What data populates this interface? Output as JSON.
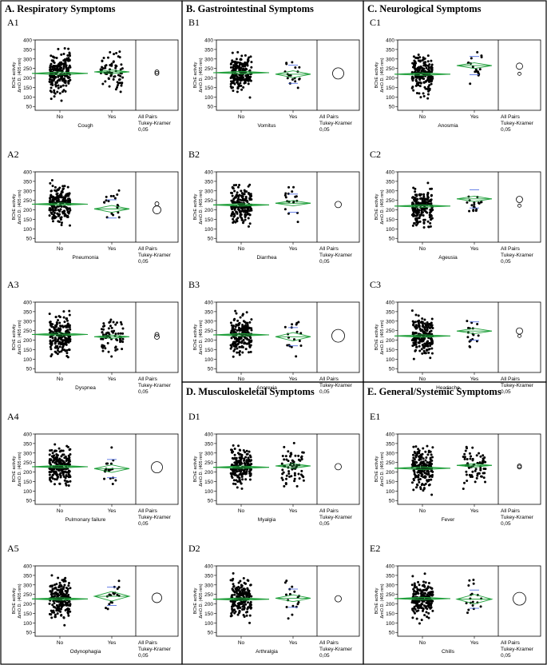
{
  "sections": [
    {
      "key": "A",
      "title": "A. Respiratory Symptoms"
    },
    {
      "key": "B",
      "title": "B. Gastrointestinal Symptoms"
    },
    {
      "key": "C",
      "title": "C. Neurological Symptoms"
    },
    {
      "key": "D",
      "title": "D. Musculoskeletal Symptoms"
    },
    {
      "key": "E",
      "title": "E. General/Systemic Symptoms"
    }
  ],
  "axis": {
    "ylabel_line1": "BChE activity",
    "ylabel_line2": "ΔmO.D. (405 nm)",
    "yticks": [
      50,
      100,
      150,
      200,
      250,
      300,
      350,
      400
    ],
    "ylim": [
      30,
      400
    ],
    "categories": [
      "No",
      "Yes"
    ]
  },
  "test_label": {
    "line1": "All Pairs",
    "line2": "Tukey-Kramer",
    "line3": "0,05"
  },
  "colors": {
    "diamond": "#1f9f3a",
    "points": "#000000",
    "blue_marks": "#4060e0",
    "frame": "#000000"
  },
  "chart_data": [
    {
      "id": "A1",
      "symptom": "Cough",
      "type": "scatter",
      "categories": [
        "No",
        "Yes"
      ],
      "means": [
        224,
        232
      ],
      "ci_half": [
        8,
        10
      ],
      "circles": [
        {
          "mean": 224,
          "r": 2.5
        },
        {
          "mean": 232,
          "r": 2.5
        }
      ]
    },
    {
      "id": "A2",
      "symptom": "Pneumonia",
      "type": "scatter",
      "categories": [
        "No",
        "Yes"
      ],
      "means": [
        230,
        205
      ],
      "ci_half": [
        7,
        18
      ],
      "circles": [
        {
          "mean": 232,
          "r": 2.5
        },
        {
          "mean": 200,
          "r": 5
        }
      ]
    },
    {
      "id": "A3",
      "symptom": "Dyspnea",
      "type": "scatter",
      "categories": [
        "No",
        "Yes"
      ],
      "means": [
        230,
        218
      ],
      "ci_half": [
        8,
        9
      ],
      "circles": [
        {
          "mean": 230,
          "r": 2.5
        },
        {
          "mean": 217,
          "r": 3
        }
      ]
    },
    {
      "id": "A4",
      "symptom": "Pulmonary failure",
      "type": "scatter",
      "categories": [
        "No",
        "Yes"
      ],
      "means": [
        228,
        218
      ],
      "ci_half": [
        7,
        20
      ],
      "circles": [
        {
          "mean": 225,
          "r": 7
        }
      ]
    },
    {
      "id": "A5",
      "symptom": "Odynophagia",
      "type": "scatter",
      "categories": [
        "No",
        "Yes"
      ],
      "means": [
        226,
        240
      ],
      "ci_half": [
        7,
        25
      ],
      "circles": [
        {
          "mean": 232,
          "r": 6
        }
      ]
    },
    {
      "id": "B1",
      "symptom": "Vomitus",
      "type": "scatter",
      "categories": [
        "No",
        "Yes"
      ],
      "means": [
        228,
        220
      ],
      "ci_half": [
        7,
        18
      ],
      "circles": [
        {
          "mean": 224,
          "r": 7
        }
      ]
    },
    {
      "id": "B2",
      "symptom": "Diarrhea",
      "type": "scatter",
      "categories": [
        "No",
        "Yes"
      ],
      "means": [
        226,
        235
      ],
      "ci_half": [
        7,
        14
      ],
      "circles": [
        {
          "mean": 228,
          "r": 4
        }
      ]
    },
    {
      "id": "B3",
      "symptom": "Anorexia",
      "type": "scatter",
      "categories": [
        "No",
        "Yes"
      ],
      "means": [
        228,
        218
      ],
      "ci_half": [
        7,
        22
      ],
      "circles": [
        {
          "mean": 223,
          "r": 8
        }
      ]
    },
    {
      "id": "C1",
      "symptom": "Anosmia",
      "type": "scatter",
      "categories": [
        "No",
        "Yes"
      ],
      "means": [
        220,
        265
      ],
      "ci_half": [
        7,
        15
      ],
      "circles": [
        {
          "mean": 262,
          "r": 4
        },
        {
          "mean": 222,
          "r": 2
        }
      ]
    },
    {
      "id": "C2",
      "symptom": "Ageusia",
      "type": "scatter",
      "categories": [
        "No",
        "Yes"
      ],
      "means": [
        220,
        258
      ],
      "ci_half": [
        7,
        14
      ],
      "circles": [
        {
          "mean": 255,
          "r": 4
        },
        {
          "mean": 222,
          "r": 2
        }
      ]
    },
    {
      "id": "C3",
      "symptom": "Headache",
      "type": "scatter",
      "categories": [
        "No",
        "Yes"
      ],
      "means": [
        222,
        248
      ],
      "ci_half": [
        7,
        14
      ],
      "circles": [
        {
          "mean": 248,
          "r": 4
        },
        {
          "mean": 222,
          "r": 2
        }
      ]
    },
    {
      "id": "D1",
      "symptom": "Myalgia",
      "type": "scatter",
      "categories": [
        "No",
        "Yes"
      ],
      "means": [
        225,
        232
      ],
      "ci_half": [
        7,
        12
      ],
      "circles": [
        {
          "mean": 228,
          "r": 4
        }
      ]
    },
    {
      "id": "D2",
      "symptom": "Arthralgia",
      "type": "scatter",
      "categories": [
        "No",
        "Yes"
      ],
      "means": [
        225,
        230
      ],
      "ci_half": [
        7,
        18
      ],
      "circles": [
        {
          "mean": 227,
          "r": 4
        }
      ]
    },
    {
      "id": "E1",
      "symptom": "Fever",
      "type": "scatter",
      "categories": [
        "No",
        "Yes"
      ],
      "means": [
        220,
        235
      ],
      "ci_half": [
        8,
        9
      ],
      "circles": [
        {
          "mean": 232,
          "r": 2.5
        },
        {
          "mean": 226,
          "r": 2.5
        }
      ]
    },
    {
      "id": "E2",
      "symptom": "Chills",
      "type": "scatter",
      "categories": [
        "No",
        "Yes"
      ],
      "means": [
        228,
        225
      ],
      "ci_half": [
        7,
        25
      ],
      "circles": [
        {
          "mean": 227,
          "r": 8
        }
      ]
    }
  ]
}
